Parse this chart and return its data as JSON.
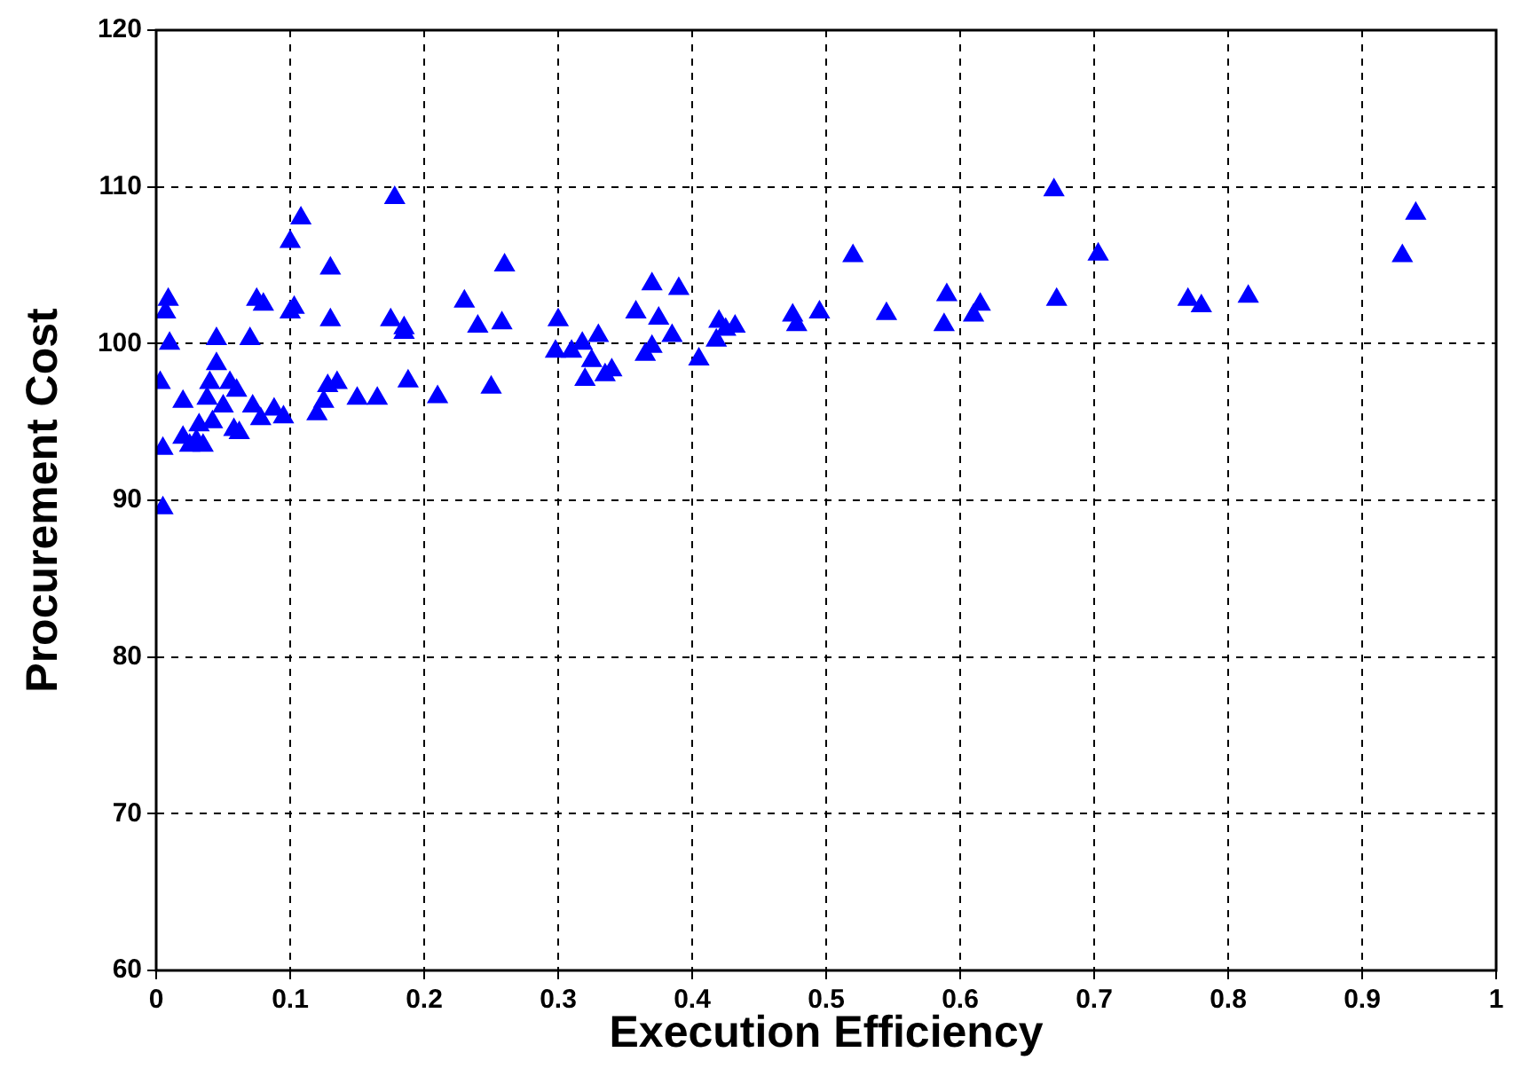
{
  "chart_data": {
    "type": "scatter",
    "xlabel": "Execution Efficiency",
    "ylabel": "Procurement Cost",
    "x": [
      0.003,
      0.005,
      0.005,
      0.007,
      0.009,
      0.01,
      0.02,
      0.02,
      0.025,
      0.03,
      0.032,
      0.035,
      0.038,
      0.04,
      0.042,
      0.045,
      0.045,
      0.05,
      0.055,
      0.058,
      0.06,
      0.062,
      0.07,
      0.072,
      0.075,
      0.078,
      0.08,
      0.088,
      0.095,
      0.1,
      0.1,
      0.103,
      0.108,
      0.12,
      0.125,
      0.128,
      0.13,
      0.13,
      0.135,
      0.15,
      0.165,
      0.175,
      0.178,
      0.185,
      0.185,
      0.188,
      0.21,
      0.23,
      0.24,
      0.25,
      0.258,
      0.26,
      0.298,
      0.3,
      0.31,
      0.318,
      0.32,
      0.325,
      0.33,
      0.335,
      0.34,
      0.358,
      0.365,
      0.37,
      0.37,
      0.375,
      0.385,
      0.39,
      0.405,
      0.418,
      0.42,
      0.425,
      0.432,
      0.475,
      0.478,
      0.495,
      0.52,
      0.545,
      0.588,
      0.59,
      0.61,
      0.615,
      0.67,
      0.672,
      0.703,
      0.77,
      0.78,
      0.815,
      0.93,
      0.94
    ],
    "series": [
      {
        "color": "#0000ff",
        "values": [
          97.5,
          93.3,
          89.5,
          102,
          102.8,
          100,
          96.3,
          94,
          93.5,
          93.8,
          94.8,
          93.5,
          96.5,
          97.5,
          95,
          100.3,
          98.7,
          96,
          97.5,
          94.5,
          97,
          94.3,
          100.3,
          96,
          102.8,
          95.2,
          102.5,
          95.8,
          95.3,
          106.5,
          102,
          102.3,
          108,
          95.5,
          96.3,
          97.3,
          101.5,
          104.8,
          97.5,
          96.5,
          96.5,
          101.5,
          109.3,
          100.7,
          101,
          97.6,
          96.6,
          102.7,
          101.1,
          97.2,
          101.3,
          105,
          99.5,
          101.5,
          99.5,
          100,
          97.7,
          98.9,
          100.5,
          98,
          98.3,
          102,
          99.3,
          103.8,
          99.8,
          101.6,
          100.5,
          103.5,
          99,
          100.2,
          101.4,
          100.9,
          101.1,
          101.8,
          101.2,
          102,
          105.6,
          101.9,
          101.2,
          103.1,
          101.8,
          102.5,
          109.8,
          102.8,
          105.7,
          102.8,
          102.4,
          103,
          105.6,
          108.3
        ]
      }
    ],
    "xlim": [
      0,
      1
    ],
    "xticks": [
      0,
      0.1,
      0.2,
      0.3,
      0.4,
      0.5,
      0.6,
      0.7,
      0.8,
      0.9,
      1
    ],
    "ylim": [
      60,
      120
    ],
    "yticks": [
      60,
      70,
      80,
      90,
      100,
      110,
      120
    ],
    "grid": true,
    "marker": "triangle",
    "legend": false
  }
}
